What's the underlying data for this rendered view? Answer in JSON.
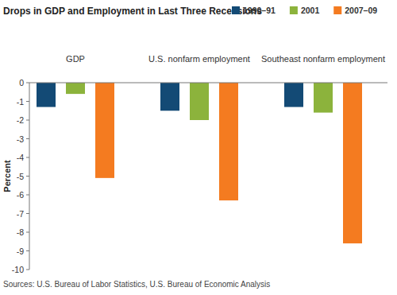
{
  "chart_data": {
    "type": "bar",
    "title": "Drops in GDP and Employment in Last Three Recessions",
    "y_label": "Percent",
    "source": "Sources: U.S. Bureau of Labor Statistics, U.S. Bureau of Economic Analysis",
    "categories": [
      "GDP",
      "U.S. nonfarm employment",
      "Southeast nonfarm employment"
    ],
    "series": [
      {
        "name": "1990–91",
        "color": "#134a75",
        "values": [
          -1.3,
          -1.5,
          -1.3
        ]
      },
      {
        "name": "2001",
        "color": "#8cb33c",
        "values": [
          -0.6,
          -2.0,
          -1.6
        ]
      },
      {
        "name": "2007–09",
        "color": "#f47b20",
        "values": [
          -5.1,
          -6.3,
          -8.6
        ]
      }
    ],
    "ylim": [
      -10,
      0
    ],
    "yticks": [
      0,
      -1,
      -2,
      -3,
      -4,
      -5,
      -6,
      -7,
      -8,
      -9,
      -10
    ],
    "grid": false,
    "legend": "top-right"
  }
}
